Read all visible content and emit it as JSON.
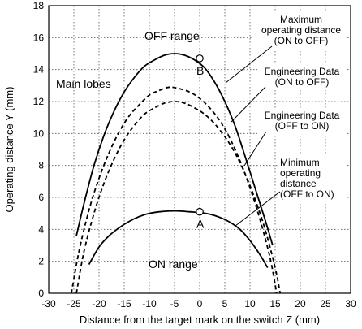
{
  "chart_data": {
    "type": "line",
    "xlabel": "Distance from the target mark on the switch Z (mm)",
    "ylabel": "Operating distance Y (mm)",
    "xlim": [
      -30,
      30
    ],
    "ylim": [
      0,
      18
    ],
    "xticks": [
      -30,
      -25,
      -20,
      -15,
      -10,
      -5,
      0,
      5,
      10,
      15,
      20,
      25,
      30
    ],
    "yticks": [
      0,
      2,
      4,
      6,
      8,
      10,
      12,
      14,
      16,
      18
    ],
    "grid": true,
    "series": [
      {
        "name": "Maximum operating distance (ON to OFF)",
        "style": "solid",
        "x": [
          -24.5,
          -23,
          -21,
          -19,
          -17,
          -15,
          -13,
          -11,
          -9,
          -7,
          -5,
          -3,
          -1,
          1,
          3,
          5,
          7,
          9,
          11,
          13,
          14.5
        ],
        "y": [
          3.6,
          5.6,
          8.0,
          9.9,
          11.4,
          12.6,
          13.5,
          14.2,
          14.6,
          14.9,
          15.0,
          14.9,
          14.6,
          14.1,
          13.2,
          12.0,
          10.5,
          8.6,
          6.6,
          4.6,
          3.0
        ]
      },
      {
        "name": "Engineering Data (ON to OFF)",
        "style": "dashed",
        "x": [
          -25.5,
          -24,
          -22,
          -20,
          -18,
          -16,
          -14,
          -12,
          -10,
          -8,
          -6,
          -4,
          -2,
          0,
          2,
          4,
          6,
          8,
          10,
          12,
          14,
          15.3
        ],
        "y": [
          0,
          2.6,
          5.2,
          7.2,
          8.8,
          10.1,
          11.1,
          11.8,
          12.4,
          12.7,
          12.9,
          12.8,
          12.6,
          12.2,
          11.6,
          10.8,
          9.7,
          8.3,
          6.6,
          4.6,
          2.2,
          0
        ]
      },
      {
        "name": "Engineering Data (OFF to ON)",
        "style": "dashed",
        "x": [
          -24.5,
          -23,
          -21,
          -19,
          -17,
          -15,
          -13,
          -11,
          -9,
          -7,
          -5,
          -3,
          -1,
          1,
          3,
          5,
          7,
          9,
          11,
          13,
          15,
          16
        ],
        "y": [
          0,
          2.6,
          5.0,
          6.9,
          8.4,
          9.6,
          10.5,
          11.2,
          11.6,
          11.9,
          12.0,
          11.9,
          11.6,
          11.2,
          10.6,
          9.8,
          8.8,
          7.5,
          5.9,
          4.0,
          1.6,
          0
        ]
      },
      {
        "name": "Minimum operating distance (OFF to ON)",
        "style": "solid",
        "x": [
          -22,
          -20,
          -18,
          -16,
          -14,
          -12,
          -10,
          -8,
          -6,
          -4,
          -2,
          0,
          2,
          4,
          6,
          8,
          10,
          12,
          13.5
        ],
        "y": [
          1.8,
          2.9,
          3.6,
          4.1,
          4.5,
          4.8,
          5.0,
          5.1,
          5.15,
          5.15,
          5.1,
          5.05,
          4.95,
          4.75,
          4.45,
          4.0,
          3.3,
          2.4,
          1.6
        ]
      }
    ],
    "points": [
      {
        "label": "A",
        "x": 0,
        "y": 5.1
      },
      {
        "label": "B",
        "x": 0,
        "y": 14.7
      }
    ],
    "annotations": {
      "off_range": "OFF range",
      "main_lobes": "Main lobes",
      "on_range": "ON range",
      "max_lines": [
        "Maximum",
        "operating distance",
        "(ON to OFF)"
      ],
      "eng_on_off_lines": [
        "Engineering Data",
        "(ON to OFF)"
      ],
      "eng_off_on_lines": [
        "Engineering Data",
        "(OFF to ON)"
      ],
      "min_lines": [
        "Minimum",
        "operating",
        "distance",
        "(OFF to ON)"
      ]
    }
  }
}
